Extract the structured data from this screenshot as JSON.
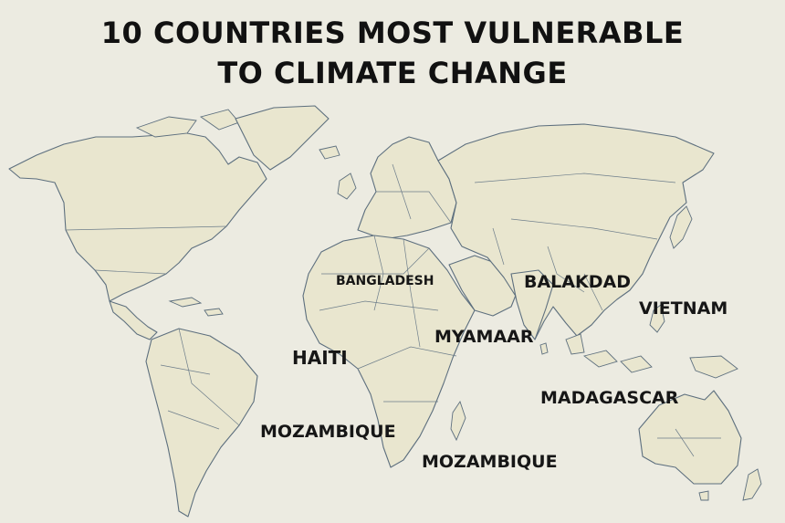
{
  "title": {
    "line1": "10 COUNTRIES MOST VULNERABLE",
    "line2": "TO CLIMATE CHANGE"
  },
  "labels": {
    "bangladesh": "BANGLADESH",
    "balakdad": "BALAKDAD",
    "vietnam": "VIETNAM",
    "myamaar": "MYAMAAR",
    "haiti": "HAITI",
    "madagascar": "MADAGASCAR",
    "mozambique_1": "MOZAMBIQUE",
    "mozambique_2": "MOZAMBIQUE"
  },
  "colors": {
    "background": "#ecebe1",
    "land": "#e9e6cf",
    "outline": "#5d6f7e",
    "text": "#111111"
  }
}
